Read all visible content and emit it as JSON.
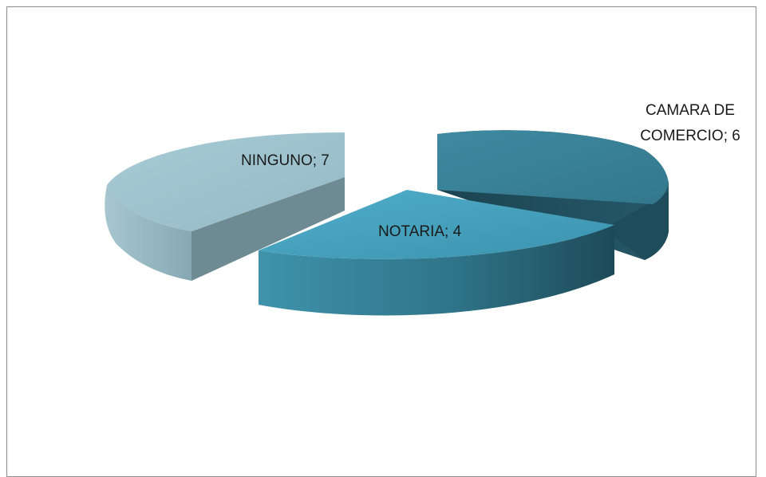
{
  "chart_data": {
    "type": "pie",
    "title": "",
    "categories": [
      "CAMARA DE COMERCIO",
      "NOTARIA",
      "NINGUNO"
    ],
    "values": [
      6,
      4,
      7
    ],
    "data_labels": {
      "camara_line1": "CAMARA DE",
      "camara_line2": "COMERCIO; 6",
      "notaria": "NOTARIA; 4",
      "ninguno": "NINGUNO; 7"
    },
    "style": "3d-exploded",
    "colors": {
      "camara": "#3a8399",
      "notaria": "#49a6bf",
      "ninguno": "#9cc2cd"
    },
    "legend": "none"
  }
}
